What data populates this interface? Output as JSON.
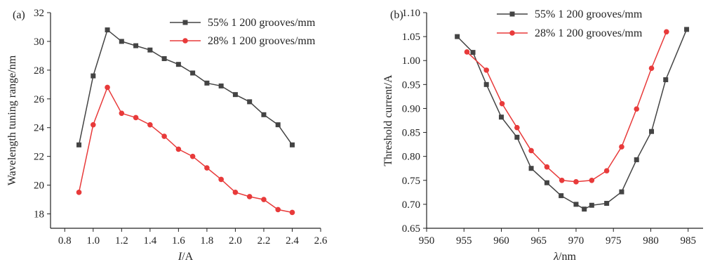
{
  "chart_data": [
    {
      "type": "line",
      "panel_label": "(a)",
      "xlabel_italic": "I",
      "xlabel_rest": "/A",
      "ylabel": "Wavelength tuning range/nm",
      "xlim": [
        0.7,
        2.6
      ],
      "ylim": [
        17,
        32
      ],
      "xticks": [
        "0.8",
        "1.0",
        "1.2",
        "1.4",
        "1.6",
        "1.8",
        "2.0",
        "2.2",
        "2.4",
        "2.6"
      ],
      "yticks": [
        "18",
        "20",
        "22",
        "24",
        "26",
        "28",
        "30",
        "32"
      ],
      "legend_position": "top-right",
      "series": [
        {
          "name": "55% 1 200 grooves/mm",
          "color": "#444444",
          "marker": "square",
          "x": [
            0.9,
            1.0,
            1.1,
            1.2,
            1.3,
            1.4,
            1.5,
            1.6,
            1.7,
            1.8,
            1.9,
            2.0,
            2.1,
            2.2,
            2.3,
            2.4
          ],
          "y": [
            22.8,
            27.6,
            30.8,
            30.0,
            29.7,
            29.4,
            28.8,
            28.4,
            27.8,
            27.1,
            26.9,
            26.3,
            25.8,
            24.9,
            24.2,
            22.8
          ]
        },
        {
          "name": "28% 1 200 grooves/mm",
          "color": "#e83a3a",
          "marker": "circle",
          "x": [
            0.9,
            1.0,
            1.1,
            1.2,
            1.3,
            1.4,
            1.5,
            1.6,
            1.7,
            1.8,
            1.9,
            2.0,
            2.1,
            2.2,
            2.3,
            2.4
          ],
          "y": [
            19.5,
            24.2,
            26.8,
            25.0,
            24.7,
            24.2,
            23.4,
            22.5,
            22.0,
            21.2,
            20.4,
            19.5,
            19.2,
            19.0,
            18.3,
            18.1
          ]
        }
      ]
    },
    {
      "type": "line",
      "panel_label": "(b)",
      "xlabel_italic": "λ",
      "xlabel_rest": "/nm",
      "ylabel": "Threshold current/A",
      "xlim": [
        950,
        987
      ],
      "ylim": [
        0.65,
        1.1
      ],
      "xticks": [
        "950",
        "955",
        "960",
        "965",
        "970",
        "975",
        "980",
        "985"
      ],
      "yticks": [
        "0.65",
        "0.70",
        "0.75",
        "0.80",
        "0.85",
        "0.90",
        "0.95",
        "1.00",
        "1.05",
        "1.10"
      ],
      "legend_position": "top-left",
      "series": [
        {
          "name": "55% 1 200 grooves/mm",
          "color": "#444444",
          "marker": "square",
          "x": [
            954.1,
            956.2,
            958.0,
            960.0,
            962.1,
            964.0,
            966.1,
            968.0,
            970.0,
            971.1,
            972.1,
            974.1,
            976.1,
            978.1,
            980.1,
            982.0,
            984.8
          ],
          "y": [
            1.05,
            1.017,
            0.95,
            0.882,
            0.84,
            0.775,
            0.745,
            0.718,
            0.7,
            0.69,
            0.698,
            0.702,
            0.726,
            0.793,
            0.852,
            0.96,
            1.065
          ]
        },
        {
          "name": "28% 1 200 grooves/mm",
          "color": "#e83a3a",
          "marker": "circle",
          "x": [
            955.4,
            958.0,
            960.1,
            962.1,
            964.0,
            966.1,
            968.1,
            970.0,
            972.1,
            974.1,
            976.1,
            978.1,
            980.1,
            982.1
          ],
          "y": [
            1.018,
            0.98,
            0.91,
            0.86,
            0.812,
            0.778,
            0.75,
            0.747,
            0.75,
            0.77,
            0.82,
            0.899,
            0.984,
            1.06
          ]
        }
      ]
    }
  ]
}
